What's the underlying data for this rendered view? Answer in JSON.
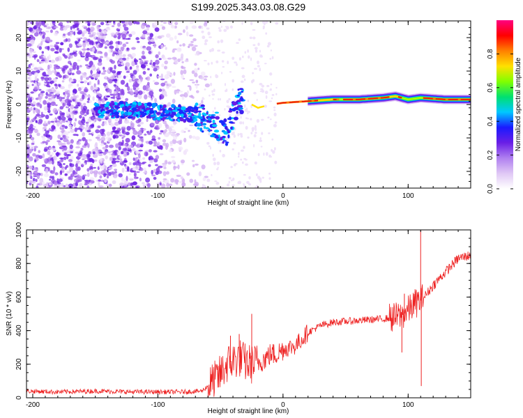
{
  "figure": {
    "title": "S199.2025.343.03.08.G29"
  },
  "chart_data": [
    {
      "type": "heatmap",
      "panel": "spectrogram",
      "xlabel": "Height of straight line (km)",
      "ylabel": "Frequency (Hz)",
      "xlim": [
        -205,
        150
      ],
      "ylim": [
        -25,
        25
      ],
      "xticks": [
        -200,
        -100,
        0,
        100
      ],
      "yticks": [
        -20,
        -10,
        0,
        10,
        20
      ],
      "colorbar": {
        "label": "Normalized spectral amplitude",
        "range": [
          0,
          1
        ],
        "ticks": [
          "0.0",
          "0.2",
          "0.4",
          "0.6",
          "0.8"
        ],
        "colormap": [
          "#ffffff",
          "#e0c8f5",
          "#b080f0",
          "#6a1fe6",
          "#1a1aff",
          "#00c8ff",
          "#00e070",
          "#80ff00",
          "#ffe000",
          "#ff8000",
          "#ff0000",
          "#ff0080"
        ]
      },
      "ridge": {
        "description_x": [
          -150,
          -130,
          -110,
          -90,
          -70,
          -55,
          -45,
          -40,
          -35,
          -30,
          -20,
          -10,
          0,
          20,
          40,
          60,
          80,
          90,
          100,
          110,
          130,
          150
        ],
        "frequency_hz": [
          -2,
          -1.5,
          -2,
          -2.5,
          -3,
          -6,
          -8,
          -3,
          2,
          1,
          -1,
          0,
          0.5,
          1,
          1.5,
          1.5,
          2,
          2.5,
          1.5,
          2,
          1.5,
          1.5
        ]
      }
    },
    {
      "type": "line",
      "panel": "snr",
      "xlabel": "Height of straight line (km)",
      "ylabel": "SNR (10 * v/v)",
      "xlim": [
        -205,
        150
      ],
      "ylim": [
        0,
        1000
      ],
      "xticks": [
        -200,
        -100,
        0,
        100
      ],
      "yticks": [
        0,
        200,
        400,
        600,
        800,
        1000
      ],
      "series": [
        {
          "name": "SNR",
          "color": "#ee2020",
          "x": [
            -205,
            -180,
            -150,
            -120,
            -100,
            -80,
            -65,
            -55,
            -50,
            -45,
            -40,
            -35,
            -30,
            -25,
            -20,
            -15,
            -10,
            -5,
            0,
            5,
            10,
            15,
            20,
            25,
            30,
            40,
            50,
            60,
            70,
            80,
            90,
            95,
            100,
            105,
            110,
            115,
            120,
            130,
            140,
            150
          ],
          "y": [
            40,
            35,
            40,
            35,
            35,
            35,
            40,
            100,
            140,
            200,
            220,
            240,
            210,
            200,
            210,
            230,
            260,
            260,
            290,
            300,
            310,
            350,
            390,
            410,
            430,
            450,
            455,
            460,
            465,
            470,
            480,
            490,
            520,
            560,
            580,
            620,
            670,
            750,
            830,
            850
          ]
        }
      ],
      "spikes": [
        {
          "x": -42,
          "y": 370
        },
        {
          "x": -35,
          "y": 380
        },
        {
          "x": -25,
          "y": 500
        },
        {
          "x": 95,
          "y": 270
        },
        {
          "x": 97,
          "y": 620
        },
        {
          "x": 110,
          "y": 1000
        },
        {
          "x": 110.5,
          "y": 70
        }
      ]
    }
  ]
}
